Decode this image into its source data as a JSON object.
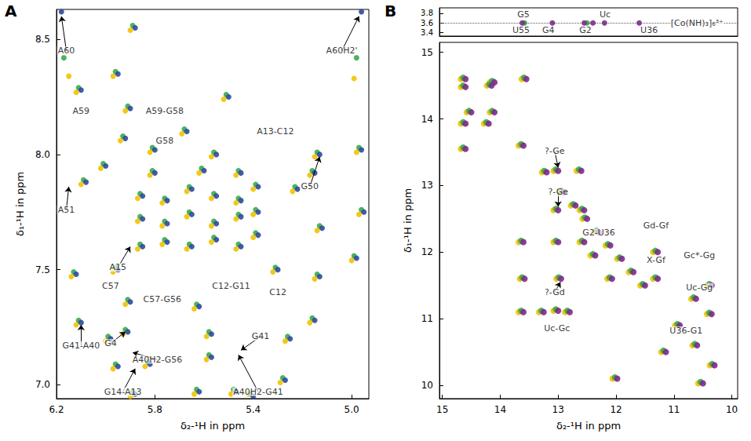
{
  "chart_data": [
    {
      "panel": "A",
      "type": "scatter",
      "marker": "circle",
      "grid": false,
      "xlabel": "δ₂-¹H in ppm",
      "ylabel": "δ₁-¹H in ppm",
      "xlim": [
        6.2,
        4.93
      ],
      "ylim": [
        6.94,
        8.63
      ],
      "xticks": [
        6.2,
        5.8,
        5.4,
        {
          "value": 5,
          "label": "5.0"
        }
      ],
      "yticks": [
        {
          "value": 7,
          "label": "7.0"
        },
        7.5,
        {
          "value": 8,
          "label": "8.0"
        },
        8.5
      ],
      "series": [
        {
          "color": "#f2c200",
          "x": [
            5.9,
            5.64,
            5.49,
            5.42,
            5.29,
            5.97,
            5.84,
            5.59,
            6.0,
            5.93,
            5.59,
            5.27,
            6.12,
            5.92,
            5.17,
            5.64,
            6.14,
            5.97,
            5.32,
            5.15,
            5.0,
            4.97,
            5.14,
            5.24,
            5.17,
            6.02,
            6.1,
            5.94,
            5.82,
            5.69,
            5.57,
            5.92,
            6.12,
            5.9,
            5.97,
            6.15,
            4.99,
            5.15,
            4.98,
            5.52,
            5.87,
            5.77,
            5.67,
            5.57,
            5.47,
            5.4,
            5.87,
            5.77,
            5.67,
            5.57,
            5.47,
            5.4,
            5.87,
            5.77,
            5.67,
            5.57,
            5.47,
            5.4,
            5.82,
            5.62,
            5.47
          ],
          "y": [
            6.95,
            6.96,
            6.96,
            6.96,
            7.01,
            7.07,
            7.08,
            7.11,
            7.19,
            7.22,
            7.21,
            7.19,
            7.26,
            7.35,
            7.27,
            7.33,
            7.47,
            7.49,
            7.49,
            7.46,
            7.54,
            7.74,
            7.67,
            7.84,
            7.91,
            7.94,
            7.87,
            8.06,
            8.01,
            8.09,
            7.99,
            8.19,
            8.27,
            8.54,
            8.34,
            8.34,
            8.33,
            7.99,
            8.01,
            8.24,
            7.59,
            7.61,
            7.59,
            7.62,
            7.59,
            7.64,
            7.71,
            7.69,
            7.73,
            7.69,
            7.72,
            7.74,
            7.81,
            7.79,
            7.84,
            7.81,
            7.79,
            7.85,
            7.91,
            7.92,
            7.91
          ]
        },
        {
          "color": "#3aaa4a",
          "x": [
            5.89,
            5.63,
            5.48,
            5.41,
            5.28,
            5.96,
            5.83,
            5.58,
            5.99,
            5.92,
            5.58,
            5.26,
            6.11,
            5.91,
            5.16,
            5.63,
            6.13,
            5.96,
            5.31,
            5.14,
            4.99,
            4.96,
            5.13,
            5.23,
            5.16,
            6.01,
            6.09,
            5.93,
            5.81,
            5.68,
            5.56,
            5.91,
            6.11,
            5.89,
            5.96,
            6.17,
            4.98,
            5.14,
            4.97,
            5.51,
            5.86,
            5.76,
            5.66,
            5.56,
            5.46,
            5.39,
            5.86,
            5.76,
            5.66,
            5.56,
            5.46,
            5.39,
            5.86,
            5.76,
            5.66,
            5.56,
            5.46,
            5.39,
            5.81,
            5.61,
            5.46
          ],
          "y": [
            6.97,
            6.98,
            6.98,
            6.96,
            7.03,
            7.09,
            7.1,
            7.13,
            7.21,
            7.24,
            7.23,
            7.21,
            7.28,
            7.37,
            7.29,
            7.35,
            7.49,
            7.51,
            7.51,
            7.48,
            7.56,
            7.76,
            7.69,
            7.86,
            7.93,
            7.96,
            7.89,
            8.08,
            8.03,
            8.11,
            8.01,
            8.21,
            8.29,
            8.56,
            8.36,
            8.42,
            8.42,
            8.01,
            8.03,
            8.26,
            7.61,
            7.63,
            7.61,
            7.64,
            7.61,
            7.66,
            7.73,
            7.71,
            7.75,
            7.71,
            7.74,
            7.76,
            7.83,
            7.81,
            7.86,
            7.83,
            7.81,
            7.87,
            7.93,
            7.94,
            7.93
          ]
        },
        {
          "color": "#2b4a9c",
          "x": [
            5.88,
            5.62,
            5.47,
            5.4,
            5.27,
            5.95,
            5.82,
            5.57,
            5.98,
            5.91,
            5.57,
            5.25,
            6.1,
            5.9,
            5.15,
            5.62,
            6.12,
            5.95,
            5.3,
            5.13,
            4.98,
            4.95,
            5.12,
            5.22,
            5.15,
            6.0,
            6.08,
            5.92,
            5.8,
            5.67,
            5.55,
            5.9,
            6.1,
            5.88,
            5.95,
            6.18,
            4.96,
            5.13,
            4.96,
            5.5,
            5.85,
            5.75,
            5.65,
            5.55,
            5.45,
            5.38,
            5.85,
            5.75,
            5.65,
            5.55,
            5.45,
            5.38,
            5.85,
            5.75,
            5.65,
            5.55,
            5.45,
            5.38,
            5.8,
            5.6,
            5.45
          ],
          "y": [
            6.96,
            6.97,
            6.97,
            6.95,
            7.02,
            7.08,
            7.09,
            7.12,
            7.2,
            7.23,
            7.22,
            7.2,
            7.27,
            7.36,
            7.28,
            7.34,
            7.48,
            7.5,
            7.5,
            7.47,
            7.55,
            7.75,
            7.68,
            7.85,
            7.92,
            7.95,
            7.88,
            8.07,
            8.02,
            8.1,
            8.0,
            8.2,
            8.28,
            8.55,
            8.35,
            8.62,
            8.62,
            8.0,
            8.02,
            8.25,
            7.6,
            7.62,
            7.6,
            7.63,
            7.6,
            7.65,
            7.72,
            7.7,
            7.74,
            7.7,
            7.73,
            7.75,
            7.82,
            7.8,
            7.85,
            7.82,
            7.8,
            7.86,
            7.92,
            7.93,
            7.92
          ]
        }
      ],
      "annotations": [
        {
          "text": "G14-A13",
          "x": 5.93,
          "y": 6.97,
          "target": [
            5.88,
            7.07
          ]
        },
        {
          "text": "A40H2-G56",
          "x": 5.79,
          "y": 7.11,
          "target": [
            5.89,
            7.14
          ]
        },
        {
          "text": "G4",
          "x": 5.98,
          "y": 7.18,
          "target": [
            5.92,
            7.23
          ]
        },
        {
          "text": "G41-A40",
          "x": 6.1,
          "y": 7.17,
          "target": [
            6.1,
            7.26
          ]
        },
        {
          "text": "A40H2-G41",
          "x": 5.38,
          "y": 6.97,
          "target": [
            5.46,
            7.13
          ]
        },
        {
          "text": "G41",
          "x": 5.37,
          "y": 7.21,
          "target": [
            5.45,
            7.15
          ]
        },
        {
          "text": "C57-G56",
          "x": 5.77,
          "y": 7.37
        },
        {
          "text": "C57",
          "x": 5.98,
          "y": 7.43
        },
        {
          "text": "C12-G11",
          "x": 5.49,
          "y": 7.43
        },
        {
          "text": "C12",
          "x": 5.3,
          "y": 7.4
        },
        {
          "text": "A15",
          "x": 5.95,
          "y": 7.51,
          "target": [
            5.9,
            7.6
          ]
        },
        {
          "text": "A51",
          "x": 6.16,
          "y": 7.76,
          "target": [
            6.15,
            7.86
          ]
        },
        {
          "text": "G50",
          "x": 5.17,
          "y": 7.86,
          "target": [
            5.13,
            7.99
          ]
        },
        {
          "text": "A13-C12",
          "x": 5.31,
          "y": 8.1
        },
        {
          "text": "G58",
          "x": 5.76,
          "y": 8.06
        },
        {
          "text": "A59",
          "x": 6.1,
          "y": 8.19
        },
        {
          "text": "A59-G58",
          "x": 5.76,
          "y": 8.19
        },
        {
          "text": "A60",
          "x": 6.16,
          "y": 8.45,
          "target": [
            6.18,
            8.6
          ]
        },
        {
          "text": "A60H2'",
          "x": 5.04,
          "y": 8.45,
          "target": [
            4.97,
            8.6
          ]
        }
      ]
    },
    {
      "panel": "B",
      "type": "scatter",
      "marker": "circle",
      "grid": false,
      "tick_labels": "y",
      "xlim": [
        15.05,
        9.9
      ],
      "ylim": [
        3.33,
        3.91
      ],
      "yticks": [
        3.4,
        3.6,
        3.8
      ],
      "hlines": [
        3.6
      ],
      "series": [
        {
          "color": "#3aaa4a",
          "x": [
            13.58,
            12.5
          ],
          "y": [
            3.6,
            3.6
          ]
        },
        {
          "color": "#7d2a8c",
          "x": [
            13.62,
            13.1,
            12.55,
            12.4,
            12.2,
            11.6
          ],
          "y": [
            3.6,
            3.6,
            3.6,
            3.6,
            3.6,
            3.6
          ]
        }
      ],
      "annotations": [
        {
          "text": "U55",
          "x": 13.64,
          "y": 3.45
        },
        {
          "text": "G5",
          "x": 13.6,
          "y": 3.78
        },
        {
          "text": "G4",
          "x": 13.17,
          "y": 3.45
        },
        {
          "text": "G2",
          "x": 12.53,
          "y": 3.45
        },
        {
          "text": "U36",
          "x": 11.43,
          "y": 3.45
        },
        {
          "text": "Uc",
          "x": 12.19,
          "y": 3.78
        },
        {
          "text": "[Co(NH)₃]₆³⁺",
          "x": 10.6,
          "y": 3.6
        }
      ]
    },
    {
      "type": "scatter",
      "marker": "circle",
      "grid": false,
      "xlabel": "δ₂-¹H in ppm",
      "ylabel": "δ₁-¹H in ppm",
      "xlim": [
        15.05,
        9.9
      ],
      "ylim": [
        9.8,
        15.15
      ],
      "xticks": [
        15,
        14,
        13,
        12,
        11,
        10
      ],
      "yticks": [
        10,
        11,
        12,
        13,
        14,
        15
      ],
      "series": [
        {
          "color": "#f2c200",
          "x": [
            14.68,
            14.18,
            13.68,
            13.28,
            12.98,
            12.78,
            12.58,
            12.38,
            12.18,
            11.98,
            11.78,
            11.58,
            10.98,
            10.68,
            10.38,
            12.06,
            14.68,
            13.63,
            14.58,
            14.18,
            13.68,
            13.33,
            13.08,
            12.88,
            13.66,
            13.03,
            12.15,
            10.7,
            10.43,
            10.43,
            11.36,
            11.36,
            12.44,
            13.68,
            13.08,
            12.63,
            13.08,
            12.63,
            13.08,
            12.68,
            14.68,
            14.28,
            14.68,
            14.23,
            11.22,
            10.58
          ],
          "y": [
            14.6,
            14.1,
            13.6,
            13.2,
            12.9,
            12.7,
            12.5,
            12.3,
            12.1,
            11.9,
            11.7,
            11.5,
            10.9,
            10.6,
            10.3,
            10.1,
            13.55,
            14.6,
            14.1,
            14.55,
            11.1,
            11.1,
            11.12,
            11.1,
            11.6,
            11.6,
            11.6,
            11.3,
            11.07,
            11.5,
            11.6,
            12.0,
            11.95,
            12.15,
            12.15,
            12.15,
            12.63,
            12.63,
            13.22,
            13.22,
            13.93,
            13.93,
            14.48,
            14.5,
            10.5,
            10.03
          ]
        },
        {
          "color": "#3aaa4a",
          "x": [
            14.64,
            14.14,
            13.64,
            13.24,
            12.94,
            12.74,
            12.54,
            12.34,
            12.14,
            11.94,
            11.74,
            11.54,
            10.94,
            10.64,
            10.34,
            12.02,
            14.64,
            13.59,
            14.54,
            14.14,
            13.64,
            13.29,
            13.04,
            12.84,
            13.62,
            12.99,
            12.11,
            10.66,
            10.39,
            10.39,
            11.32,
            11.32,
            12.4,
            13.64,
            13.04,
            12.59,
            13.04,
            12.59,
            13.04,
            12.64,
            14.64,
            14.24,
            14.64,
            14.19,
            11.18,
            10.54
          ],
          "y": [
            14.62,
            14.12,
            13.62,
            13.22,
            12.92,
            12.72,
            12.52,
            12.32,
            12.12,
            11.92,
            11.72,
            11.52,
            10.92,
            10.62,
            10.32,
            10.12,
            13.57,
            14.62,
            14.12,
            14.57,
            11.12,
            11.12,
            11.14,
            11.12,
            11.62,
            11.62,
            11.62,
            11.32,
            11.09,
            11.52,
            11.62,
            12.02,
            11.97,
            12.17,
            12.17,
            12.17,
            12.65,
            12.65,
            13.24,
            13.24,
            13.95,
            13.95,
            14.5,
            14.52,
            10.52,
            10.05
          ]
        },
        {
          "color": "#7d2a8c",
          "x": [
            14.6,
            14.1,
            13.6,
            13.2,
            12.9,
            12.7,
            12.5,
            12.3,
            12.1,
            11.9,
            11.7,
            11.5,
            10.9,
            10.6,
            10.3,
            11.98,
            14.6,
            13.55,
            14.5,
            14.1,
            13.6,
            13.25,
            13.0,
            12.8,
            13.58,
            12.95,
            12.07,
            10.62,
            10.35,
            10.35,
            11.28,
            11.28,
            12.36,
            13.6,
            13.0,
            12.55,
            13.0,
            12.55,
            13.0,
            12.6,
            14.6,
            14.2,
            14.6,
            14.15,
            11.14,
            10.5
          ],
          "y": [
            14.6,
            14.1,
            13.6,
            13.2,
            12.9,
            12.7,
            12.5,
            12.3,
            12.1,
            11.9,
            11.7,
            11.5,
            10.9,
            10.6,
            10.3,
            10.1,
            13.55,
            14.6,
            14.1,
            14.55,
            11.1,
            11.1,
            11.12,
            11.1,
            11.6,
            11.6,
            11.6,
            11.3,
            11.07,
            11.5,
            11.6,
            12.0,
            11.95,
            12.15,
            12.15,
            12.15,
            12.63,
            12.63,
            13.22,
            13.22,
            13.93,
            13.93,
            14.48,
            14.5,
            10.5,
            10.03
          ]
        }
      ],
      "annotations": [
        {
          "text": "Uc-Gc",
          "x": 13.02,
          "y": 10.85
        },
        {
          "text": "?-Gd",
          "x": 13.06,
          "y": 11.4,
          "target": [
            12.96,
            11.55
          ]
        },
        {
          "text": "U36-G1",
          "x": 10.79,
          "y": 10.82
        },
        {
          "text": "Uc-Gg",
          "x": 10.56,
          "y": 11.47
        },
        {
          "text": "X-Gf",
          "x": 11.31,
          "y": 11.88
        },
        {
          "text": "Gc*-Gg",
          "x": 10.56,
          "y": 11.95
        },
        {
          "text": "Gd-Gf",
          "x": 11.31,
          "y": 12.4
        },
        {
          "text": "G2-U36",
          "x": 12.3,
          "y": 12.29
        },
        {
          "text": "?-Ge",
          "x": 13.0,
          "y": 12.9,
          "target": [
            13.0,
            12.68
          ]
        },
        {
          "text": "?-Ge",
          "x": 13.06,
          "y": 13.52,
          "target": [
            13.0,
            13.27
          ]
        }
      ]
    }
  ]
}
